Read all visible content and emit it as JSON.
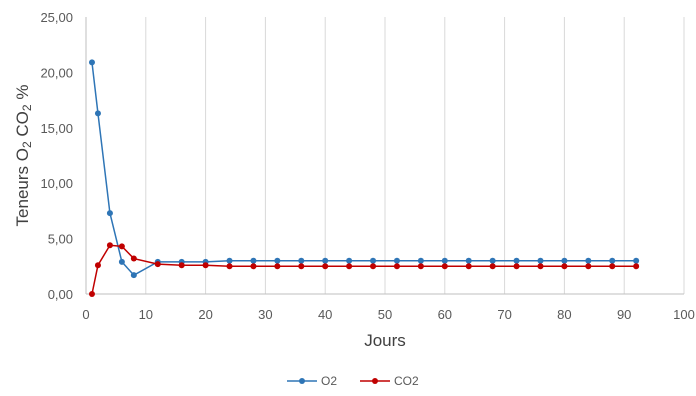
{
  "chart_data": {
    "type": "line",
    "xlabel": "Jours",
    "ylabel": {
      "parts": [
        "Teneurs O",
        "2",
        " CO",
        "2",
        " %"
      ]
    },
    "xlim": [
      0,
      100
    ],
    "ylim": [
      0,
      25
    ],
    "x_ticks": [
      "0",
      "10",
      "20",
      "30",
      "40",
      "50",
      "60",
      "70",
      "80",
      "90",
      "100"
    ],
    "y_ticks": [
      "0,00",
      "5,00",
      "10,00",
      "15,00",
      "20,00",
      "25,00"
    ],
    "grid": "vertical",
    "legend": "bottom",
    "x": [
      1,
      2,
      4,
      6,
      8,
      12,
      16,
      20,
      24,
      28,
      32,
      36,
      40,
      44,
      48,
      52,
      56,
      60,
      64,
      68,
      72,
      76,
      80,
      84,
      88,
      92
    ],
    "series": [
      {
        "name": "O2",
        "color": "#2e75b6",
        "values": [
          20.9,
          16.3,
          7.3,
          2.9,
          1.7,
          2.9,
          2.9,
          2.9,
          3.0,
          3.0,
          3.0,
          3.0,
          3.0,
          3.0,
          3.0,
          3.0,
          3.0,
          3.0,
          3.0,
          3.0,
          3.0,
          3.0,
          3.0,
          3.0,
          3.0,
          3.0
        ]
      },
      {
        "name": "CO2",
        "color": "#c00000",
        "values": [
          0.0,
          2.6,
          4.4,
          4.3,
          3.2,
          2.7,
          2.6,
          2.6,
          2.5,
          2.5,
          2.5,
          2.5,
          2.5,
          2.5,
          2.5,
          2.5,
          2.5,
          2.5,
          2.5,
          2.5,
          2.5,
          2.5,
          2.5,
          2.5,
          2.5,
          2.5
        ]
      }
    ]
  }
}
